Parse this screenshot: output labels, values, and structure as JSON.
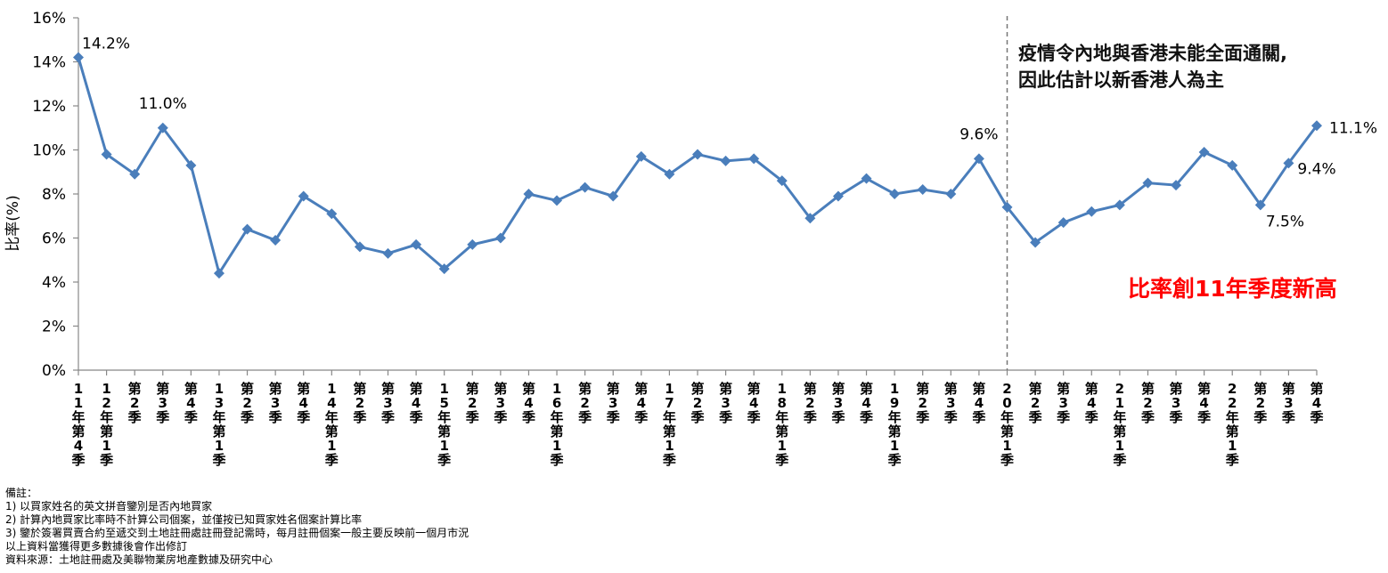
{
  "chart_data": {
    "type": "line",
    "ylabel": "比率(%)",
    "ylim": [
      0,
      16
    ],
    "yticks": [
      "0%",
      "2%",
      "4%",
      "6%",
      "8%",
      "10%",
      "12%",
      "14%",
      "16%"
    ],
    "grid": false,
    "categories": [
      "11年第4季",
      "12年第1季",
      "第2季",
      "第3季",
      "第4季",
      "13年第1季",
      "第2季",
      "第3季",
      "第4季",
      "14年第1季",
      "第2季",
      "第3季",
      "第4季",
      "15年第1季",
      "第2季",
      "第3季",
      "第4季",
      "16年第1季",
      "第2季",
      "第3季",
      "第4季",
      "17年第1季",
      "第2季",
      "第3季",
      "第4季",
      "18年第1季",
      "第2季",
      "第3季",
      "第4季",
      "19年第1季",
      "第2季",
      "第3季",
      "第4季",
      "20年第1季",
      "第2季",
      "第3季",
      "第4季",
      "21年第1季",
      "第2季",
      "第3季",
      "第4季",
      "22年第1季",
      "第2季",
      "第3季",
      "第4季"
    ],
    "series": [
      {
        "values": [
          14.2,
          9.8,
          8.9,
          11.0,
          9.3,
          4.4,
          6.4,
          5.9,
          7.9,
          7.1,
          5.6,
          5.3,
          5.7,
          4.6,
          5.7,
          6.0,
          8.0,
          7.7,
          8.3,
          7.9,
          9.7,
          8.9,
          9.8,
          9.5,
          9.6,
          8.6,
          6.9,
          7.9,
          8.7,
          8.0,
          8.2,
          8.0,
          9.6,
          7.4,
          5.8,
          6.7,
          7.2,
          7.5,
          8.5,
          8.4,
          9.9,
          9.3,
          7.5,
          9.4,
          11.1
        ],
        "color": "#4a7ebb"
      }
    ],
    "data_labels": [
      {
        "index": 0,
        "text": "14.2%"
      },
      {
        "index": 3,
        "text": "11.0%"
      },
      {
        "index": 32,
        "text": "9.6%"
      },
      {
        "index": 42,
        "text": "7.5%"
      },
      {
        "index": 43,
        "text": "9.4%"
      },
      {
        "index": 44,
        "text": "11.1%"
      }
    ],
    "divider_index": 33,
    "annotations": {
      "note_line1": "疫情令內地與香港未能全面通關,",
      "note_line2": "因此估計以新香港人為主",
      "highlight": "比率創11年季度新高",
      "highlight_color": "#ff0000"
    }
  },
  "footnotes": {
    "heading": "備註：",
    "lines": [
      "1) 以買家姓名的英文拼音鑒別是否內地買家",
      "2) 計算內地買家比率時不計算公司個案，並僅按已知買家姓名個案計算比率",
      "3) 鑒於簽署買賣合約至遞交到土地註冊處註冊登記需時，每月註冊個案一般主要反映前一個月市況",
      "以上資料當獲得更多數據後會作出修訂",
      "資料來源：土地註冊處及美聯物業房地產數據及研究中心"
    ]
  }
}
